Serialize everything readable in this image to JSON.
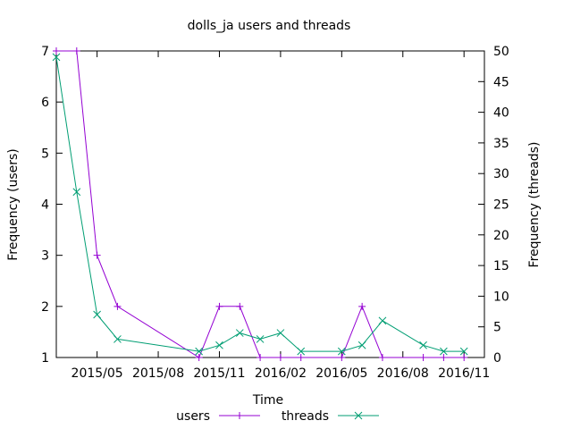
{
  "chart_data": {
    "type": "line",
    "title": "dolls_ja users and threads",
    "xlabel": "Time",
    "ylabel": "Frequency (users)",
    "y2label": "Frequency (threads)",
    "x_ticks": [
      "2015/05",
      "2015/08",
      "2015/11",
      "2016/02",
      "2016/05",
      "2016/08",
      "2016/11"
    ],
    "x_range": [
      "2015-03",
      "2016-12"
    ],
    "y_range": [
      1,
      7
    ],
    "y_ticks": [
      "1",
      "2",
      "3",
      "4",
      "5",
      "6",
      "7"
    ],
    "y2_range": [
      0,
      50
    ],
    "y2_ticks": [
      "0",
      "5",
      "10",
      "15",
      "20",
      "25",
      "30",
      "35",
      "40",
      "45",
      "50"
    ],
    "legend_position": "bottom",
    "grid": false,
    "series": [
      {
        "name": "users",
        "axis": "left",
        "color": "#9400D3",
        "marker": "plus",
        "points": [
          {
            "x": "2015-03",
            "y": 7
          },
          {
            "x": "2015-04",
            "y": 7
          },
          {
            "x": "2015-05",
            "y": 3
          },
          {
            "x": "2015-06",
            "y": 2
          },
          {
            "x": "2015-10",
            "y": 1
          },
          {
            "x": "2015-11",
            "y": 2
          },
          {
            "x": "2015-12",
            "y": 2
          },
          {
            "x": "2016-01",
            "y": 1
          },
          {
            "x": "2016-02",
            "y": 1
          },
          {
            "x": "2016-03",
            "y": 1
          },
          {
            "x": "2016-05",
            "y": 1
          },
          {
            "x": "2016-06",
            "y": 2
          },
          {
            "x": "2016-07",
            "y": 1
          },
          {
            "x": "2016-09",
            "y": 1
          },
          {
            "x": "2016-10",
            "y": 1
          },
          {
            "x": "2016-11",
            "y": 1
          }
        ]
      },
      {
        "name": "threads",
        "axis": "right",
        "color": "#009E73",
        "marker": "cross",
        "points": [
          {
            "x": "2015-03",
            "y": 49
          },
          {
            "x": "2015-04",
            "y": 27
          },
          {
            "x": "2015-05",
            "y": 7
          },
          {
            "x": "2015-06",
            "y": 3
          },
          {
            "x": "2015-10",
            "y": 1
          },
          {
            "x": "2015-11",
            "y": 2
          },
          {
            "x": "2015-12",
            "y": 4
          },
          {
            "x": "2016-01",
            "y": 3
          },
          {
            "x": "2016-02",
            "y": 4
          },
          {
            "x": "2016-03",
            "y": 1
          },
          {
            "x": "2016-05",
            "y": 1
          },
          {
            "x": "2016-06",
            "y": 2
          },
          {
            "x": "2016-07",
            "y": 6
          },
          {
            "x": "2016-09",
            "y": 2
          },
          {
            "x": "2016-10",
            "y": 1
          },
          {
            "x": "2016-11",
            "y": 1
          }
        ]
      }
    ]
  }
}
